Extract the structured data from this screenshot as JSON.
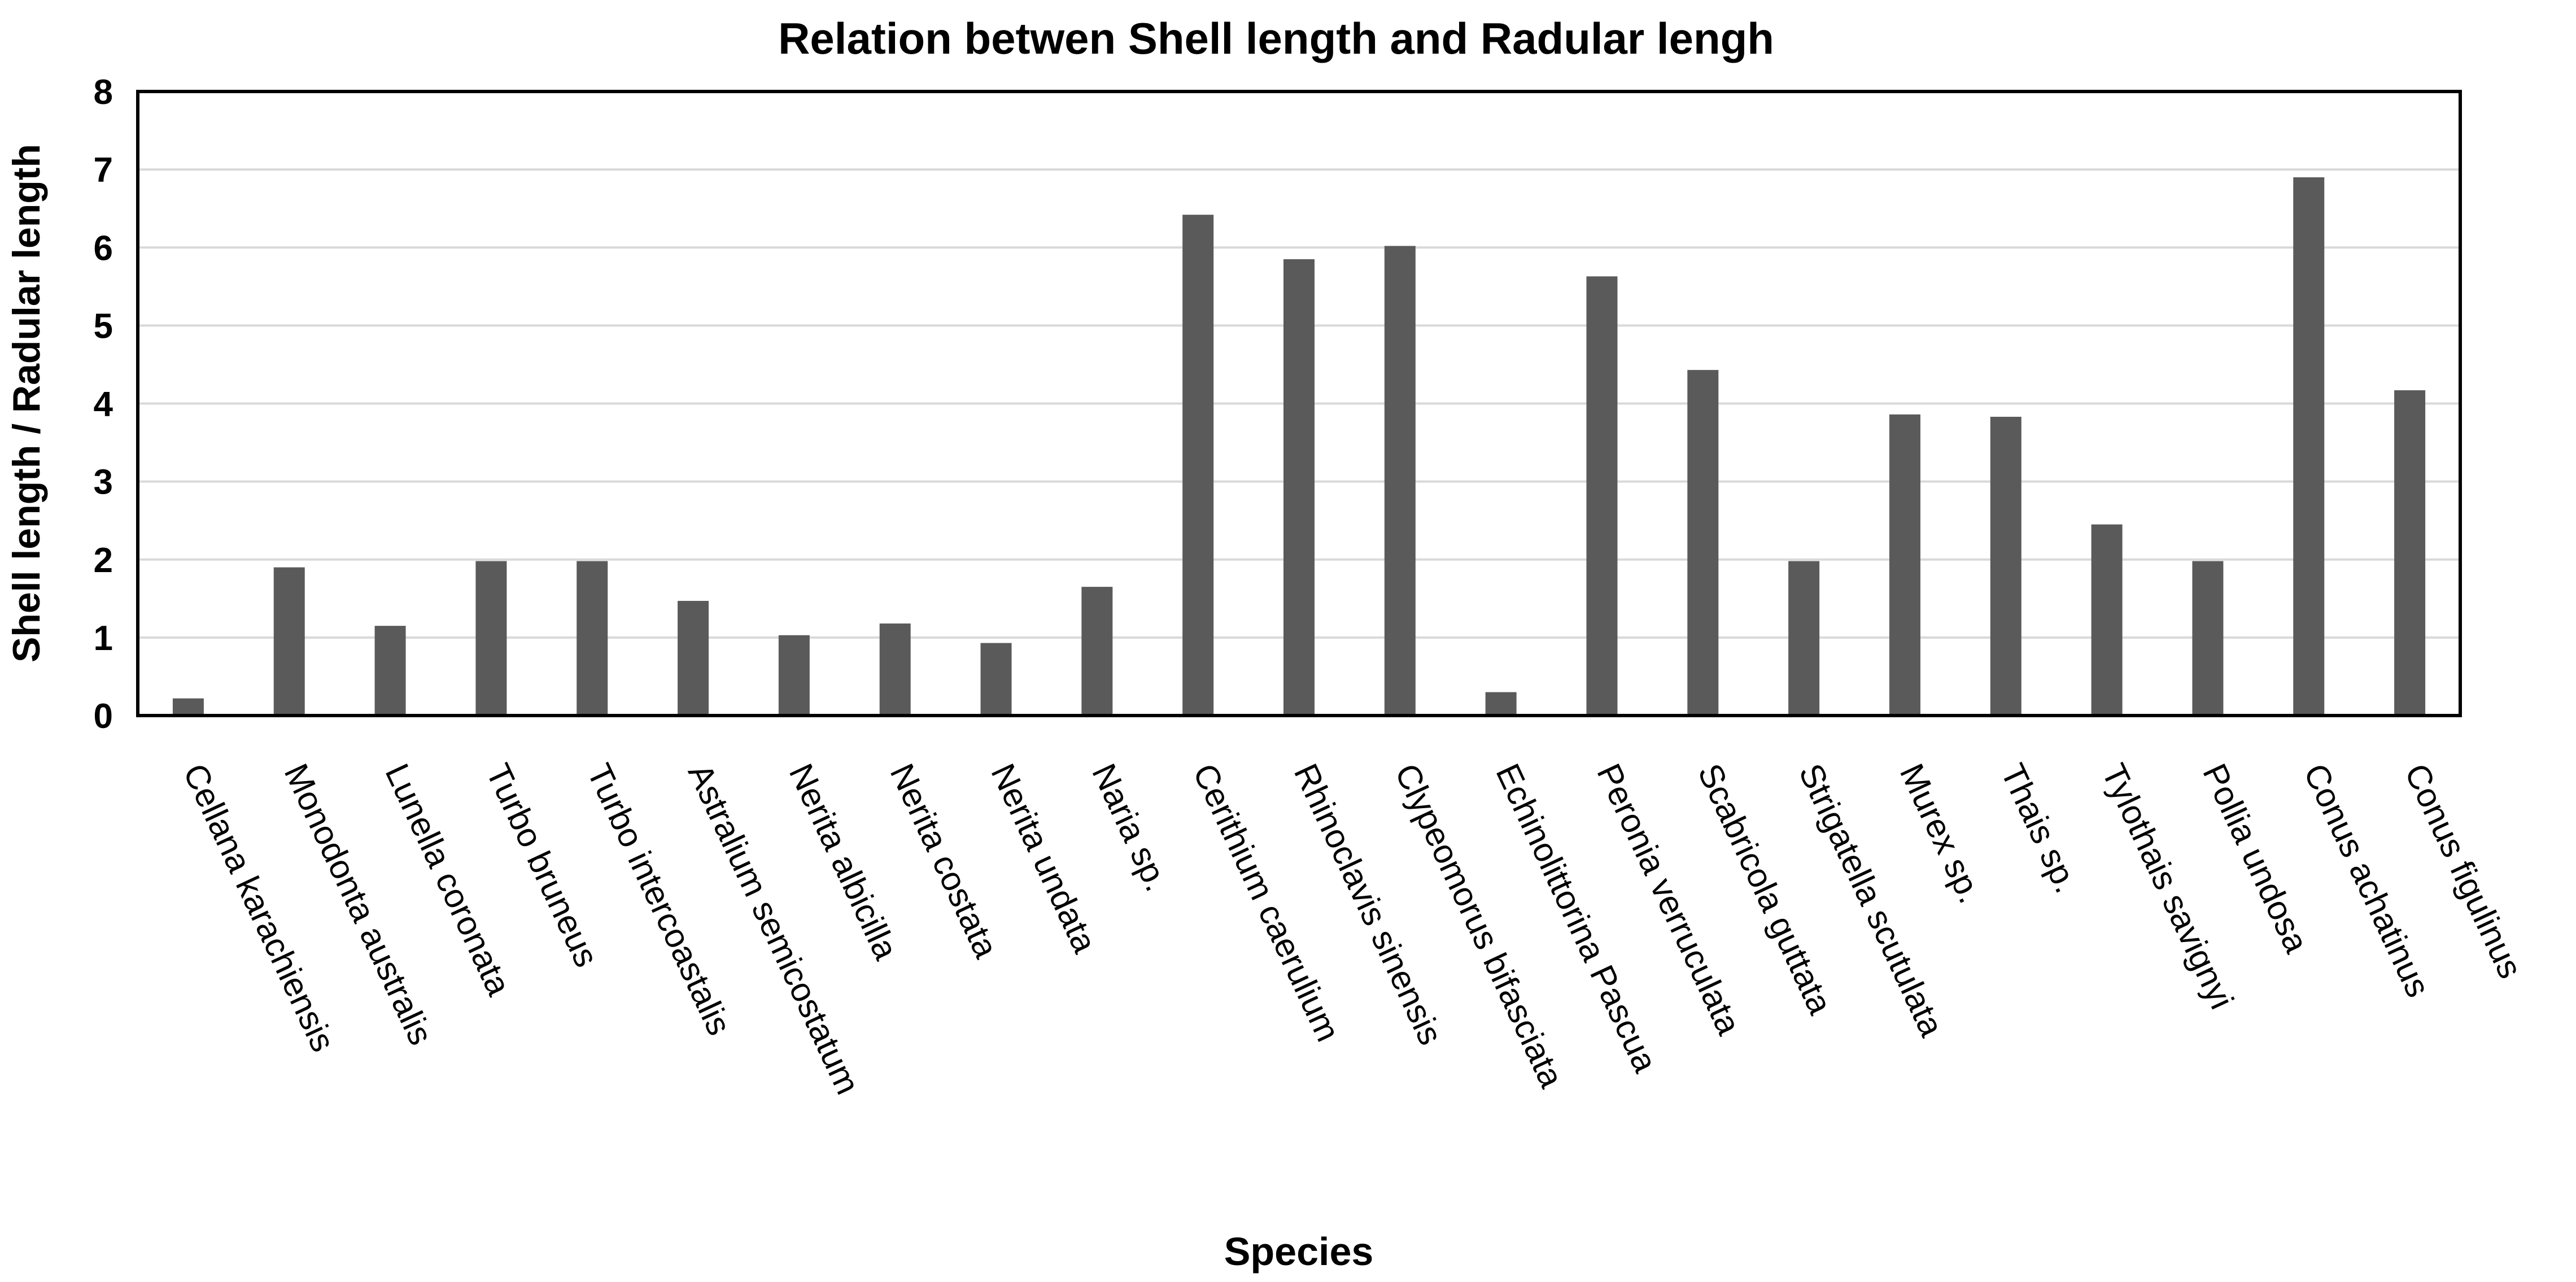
{
  "chart_data": {
    "type": "bar",
    "title": "Relation betwen Shell length and Radular lengh",
    "xlabel": "Species",
    "ylabel": "Shell length / Radular length",
    "ylim": [
      0,
      8
    ],
    "yticks": [
      0,
      1,
      2,
      3,
      4,
      5,
      6,
      7,
      8
    ],
    "grid": true,
    "bar_color": "#5a5a5a",
    "grid_color": "#d9d9d9",
    "categories": [
      "Cellana karachiensis",
      "Monodonta australis",
      "Lunella coronata",
      "Turbo bruneus",
      "Turbo intercoastalis",
      "Astralium semicostatum",
      "Nerita albicilla",
      "Nerita costata",
      "Nerita undata",
      "Naria sp.",
      "Cerithium caerulium",
      "Rhinoclavis sinensis",
      "Clypeomorus bifasciata",
      "Echinolittorina Pascua",
      "Peronia verruculata",
      "Scabricola guttata",
      "Strigatella scutulata",
      "Murex sp.",
      "Thais sp.",
      "Tylothais savignyi",
      "Pollia undosa",
      "Conus achatinus",
      "Conus figulinus"
    ],
    "values": [
      0.22,
      1.9,
      1.15,
      1.98,
      1.98,
      1.47,
      1.03,
      1.18,
      0.93,
      1.65,
      6.42,
      5.85,
      6.02,
      0.3,
      5.63,
      4.43,
      1.98,
      3.86,
      3.83,
      2.45,
      1.98,
      6.9,
      4.17
    ]
  }
}
